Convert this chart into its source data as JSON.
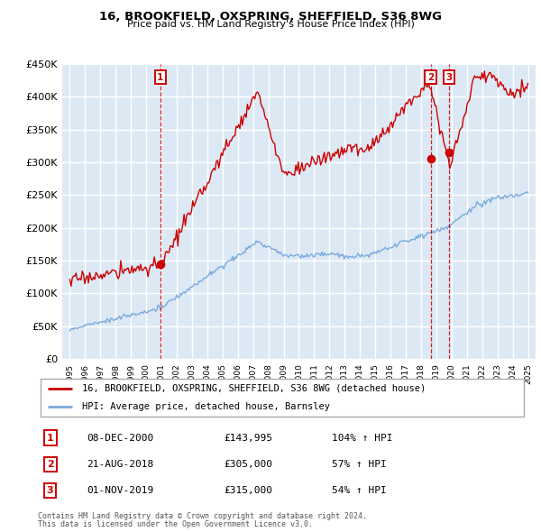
{
  "title": "16, BROOKFIELD, OXSPRING, SHEFFIELD, S36 8WG",
  "subtitle": "Price paid vs. HM Land Registry's House Price Index (HPI)",
  "ylabel_ticks": [
    "£0",
    "£50K",
    "£100K",
    "£150K",
    "£200K",
    "£250K",
    "£300K",
    "£350K",
    "£400K",
    "£450K"
  ],
  "ytick_values": [
    0,
    50000,
    100000,
    150000,
    200000,
    250000,
    300000,
    350000,
    400000,
    450000
  ],
  "ylim": [
    0,
    450000
  ],
  "xlim_start": 1994.5,
  "xlim_end": 2025.5,
  "background_color": "#ffffff",
  "plot_bg_color": "#dce9f5",
  "grid_color": "#ffffff",
  "red_color": "#cc0000",
  "blue_color": "#7aaadd",
  "sale1_price": 143995,
  "sale1_pct": "104%",
  "sale1_x": 2000.93,
  "sale2_price": 305000,
  "sale2_pct": "57%",
  "sale2_x": 2018.63,
  "sale3_price": 315000,
  "sale3_pct": "54%",
  "sale3_x": 2019.83,
  "sale1_date": "08-DEC-2000",
  "sale2_date": "21-AUG-2018",
  "sale3_date": "01-NOV-2019",
  "legend_label_red": "16, BROOKFIELD, OXSPRING, SHEFFIELD, S36 8WG (detached house)",
  "legend_label_blue": "HPI: Average price, detached house, Barnsley",
  "footer1": "Contains HM Land Registry data © Crown copyright and database right 2024.",
  "footer2": "This data is licensed under the Open Government Licence v3.0."
}
